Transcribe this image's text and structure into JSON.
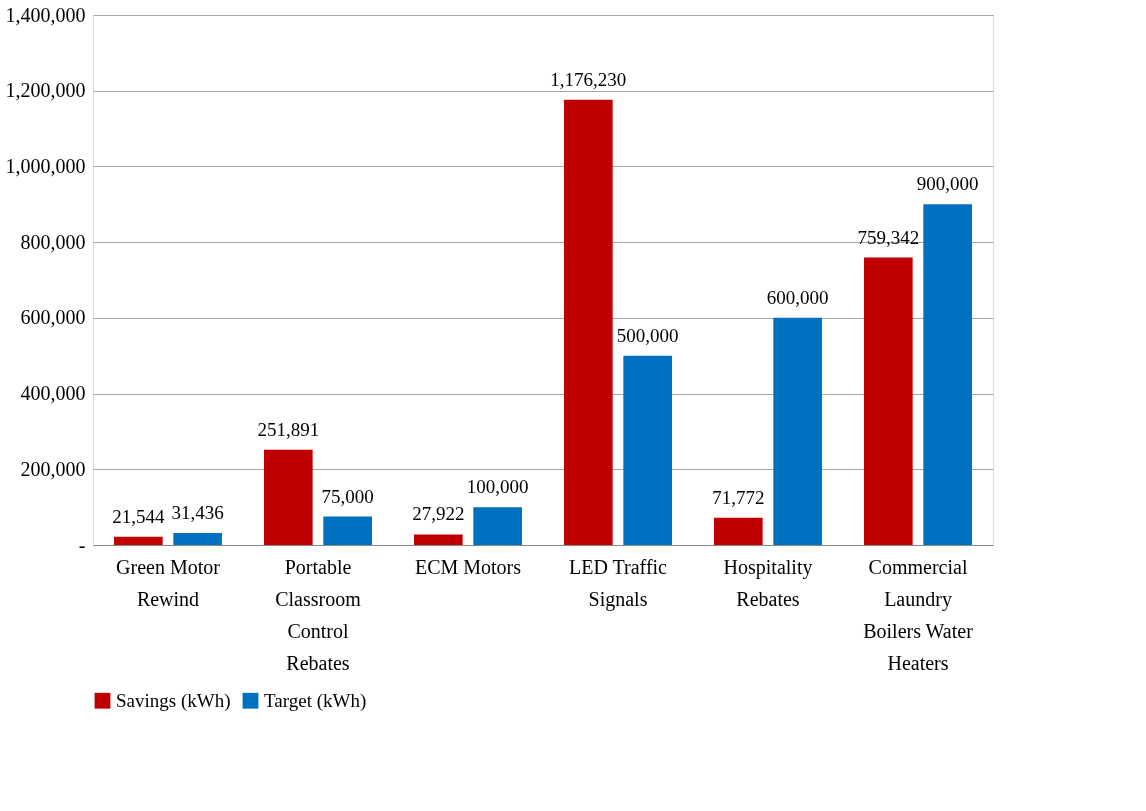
{
  "chart_data": {
    "type": "bar",
    "categories": [
      "Green Motor Rewind",
      "Portable Classroom Control Rebates",
      "ECM Motors",
      "LED Traffic Signals",
      "Hospitality Rebates",
      "Commercial Laundry Boilers Water Heaters"
    ],
    "series": [
      {
        "name": "Savings (kWh)",
        "color": "#c00000",
        "values": [
          21544,
          251891,
          27922,
          1176230,
          71772,
          759342
        ],
        "value_labels": [
          "21,544",
          "251,891",
          "27,922",
          "1,176,230",
          "71,772",
          "759,342"
        ]
      },
      {
        "name": "Target (kWh)",
        "color": "#0070c0",
        "values": [
          31436,
          75000,
          100000,
          500000,
          600000,
          900000
        ],
        "value_labels": [
          "31,436",
          "75,000",
          "100,000",
          "500,000",
          "600,000",
          "900,000"
        ]
      }
    ],
    "ylim": [
      0,
      1400000
    ],
    "yticks": [
      {
        "value": 0,
        "label": "-"
      },
      {
        "value": 200000,
        "label": "200,000"
      },
      {
        "value": 400000,
        "label": "400,000"
      },
      {
        "value": 600000,
        "label": "600,000"
      },
      {
        "value": 800000,
        "label": "800,000"
      },
      {
        "value": 1000000,
        "label": "1,000,000"
      },
      {
        "value": 1200000,
        "label": "1,200,000"
      },
      {
        "value": 1400000,
        "label": "1,400,000"
      }
    ],
    "grid": "y",
    "legend": "bottom"
  }
}
